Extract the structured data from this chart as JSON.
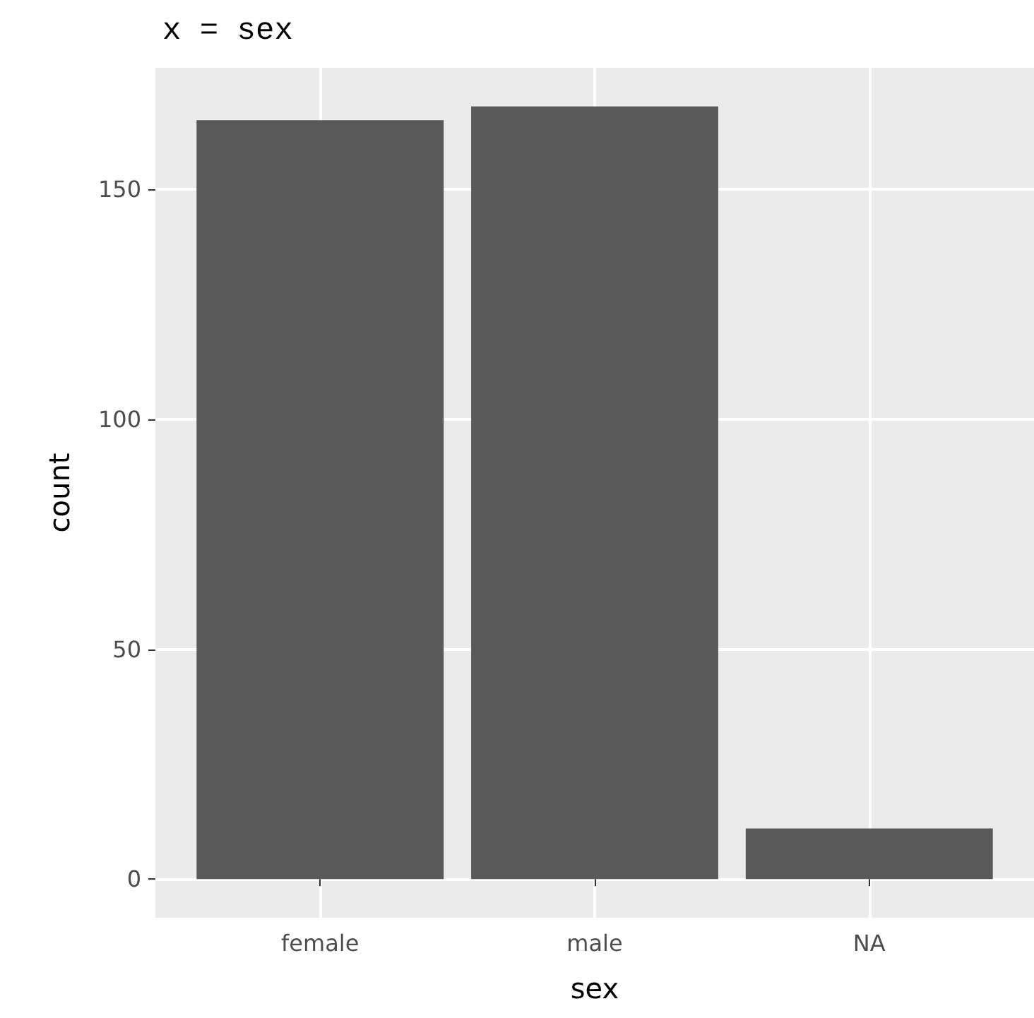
{
  "chart_data": {
    "type": "bar",
    "title": "x = sex",
    "xlabel": "sex",
    "ylabel": "count",
    "categories": [
      "female",
      "male",
      "NA"
    ],
    "values": [
      165,
      168,
      11
    ],
    "color": "#595959",
    "ylim": [
      -8.4,
      176.4
    ],
    "yticks": [
      0,
      50,
      100,
      150
    ],
    "grid": true
  }
}
